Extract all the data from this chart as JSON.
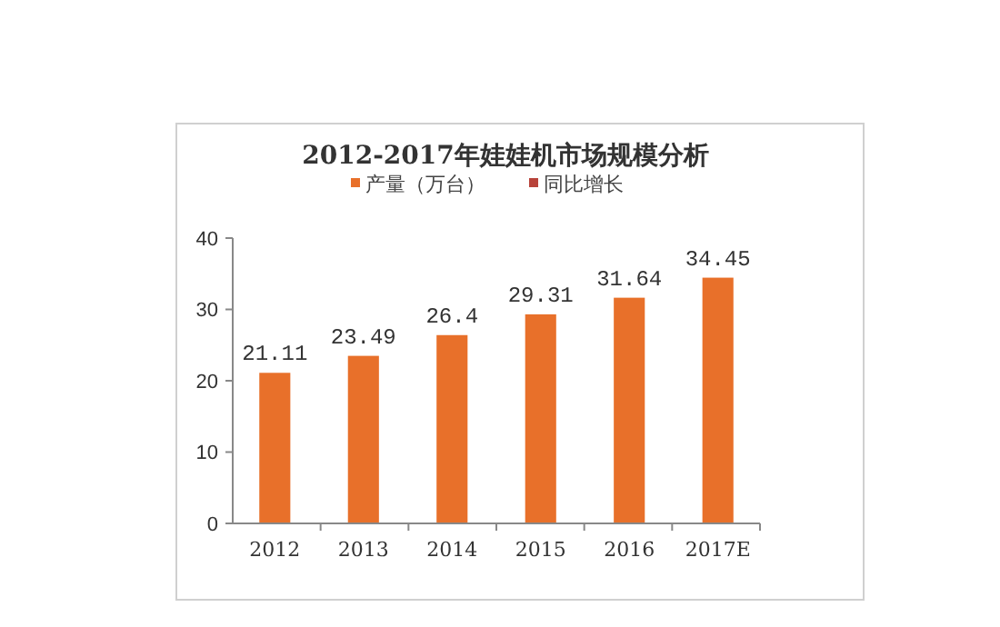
{
  "chart_data": {
    "type": "bar",
    "title": "2012-2017年娃娃机市场规模分析",
    "categories": [
      "2012",
      "2013",
      "2014",
      "2015",
      "2016",
      "2017E"
    ],
    "series": [
      {
        "name": "产量（万台）",
        "color": "#e8702a",
        "values": [
          21.11,
          23.49,
          26.4,
          29.31,
          31.64,
          34.45
        ]
      },
      {
        "name": "同比增长",
        "color": "#b8433a",
        "values": [
          null,
          null,
          null,
          null,
          null,
          null
        ]
      }
    ],
    "ylim": [
      0,
      40
    ],
    "yticks": [
      0,
      10,
      20,
      30,
      40
    ],
    "grid": false,
    "legend": "top",
    "data_labels": true
  }
}
